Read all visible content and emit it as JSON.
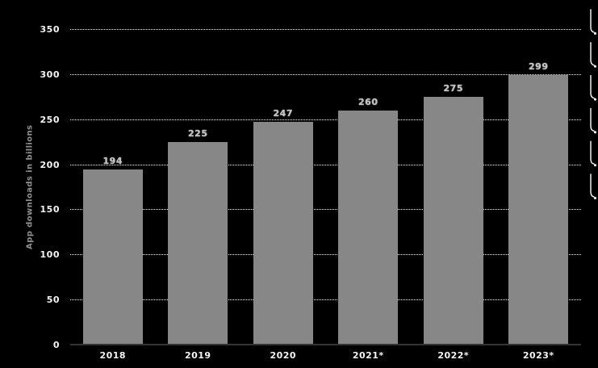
{
  "chart_data": {
    "type": "bar",
    "categories": [
      "2018",
      "2019",
      "2020",
      "2021*",
      "2022*",
      "2023*"
    ],
    "values": [
      194,
      225,
      247,
      260,
      275,
      299
    ],
    "value_labels": [
      "194",
      "225",
      "247",
      "260",
      "275",
      "299"
    ],
    "title": "",
    "xlabel": "",
    "ylabel": "App downloads in billions",
    "ylim": [
      0,
      350
    ],
    "yticks": [
      0,
      50,
      100,
      150,
      200,
      250,
      300,
      350
    ],
    "grid": "horizontal-dotted",
    "legend": "none",
    "colors": {
      "background": "#000000",
      "bar": "#878787",
      "tick_label": "#f5f5f5",
      "value_label": "#c2c2c2",
      "ylabel": "#8f8f8f",
      "gridline": "#ffffff",
      "axis_line": "#343434"
    }
  },
  "decor": {
    "right_edge_marks_count": 6
  }
}
